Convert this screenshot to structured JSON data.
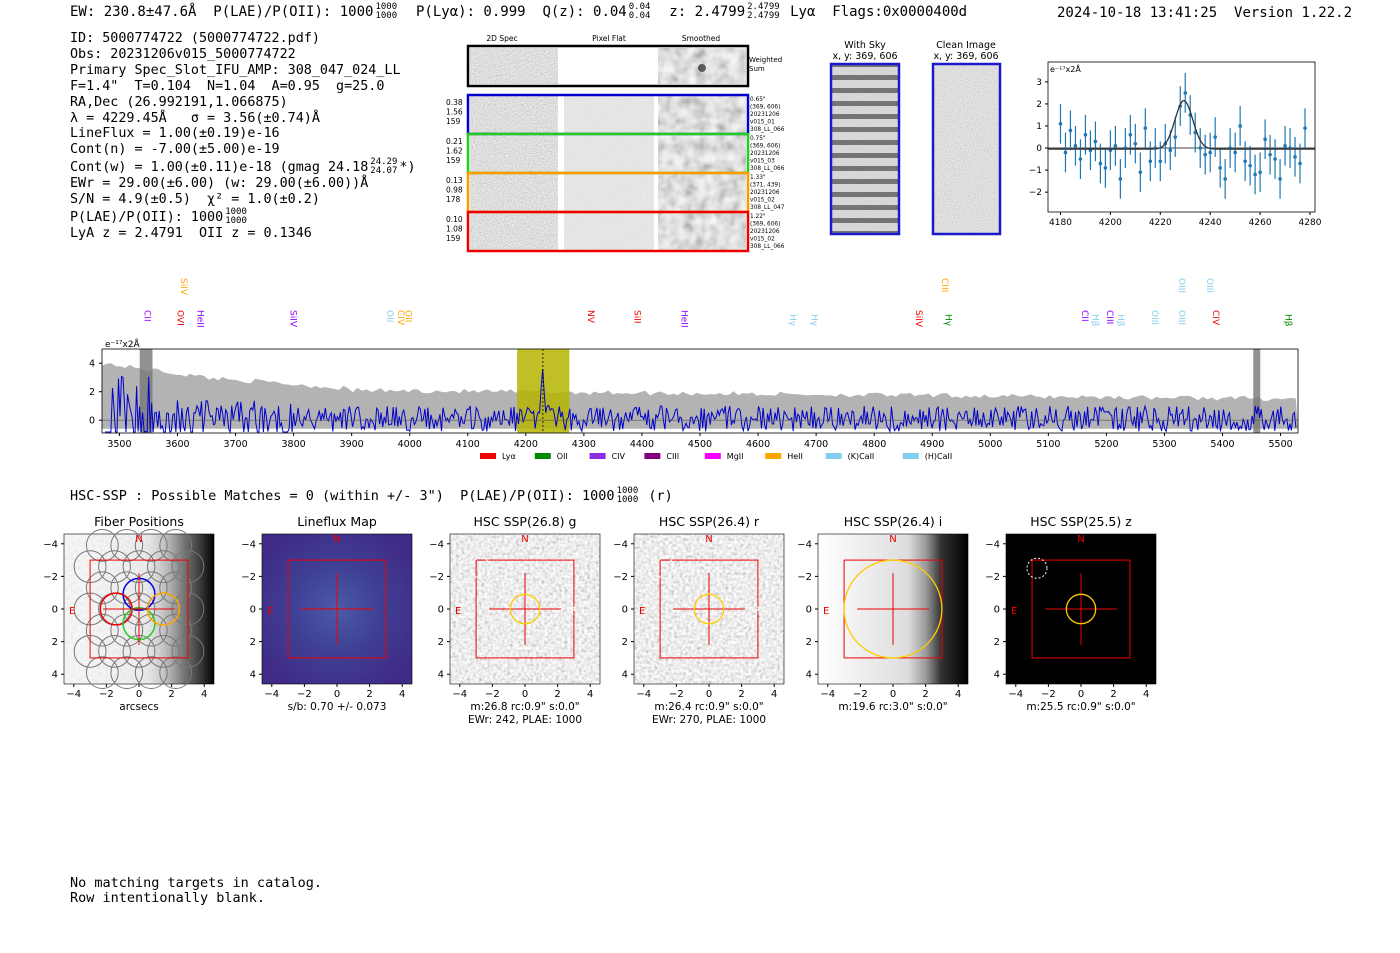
{
  "header": {
    "ew_label": "EW: 230.8±47.6Å",
    "plae_label": "P(LAE)/P(OII): 1000",
    "plae_hi": "1000",
    "plae_lo": "1000",
    "plya_label": "P(Lyα): 0.999",
    "qz_label": "Q(z): 0.04",
    "qz_hi": "0.04",
    "qz_lo": "0.04",
    "z_label": "z: 2.4799",
    "z_hi": "2.4799",
    "z_lo": "2.4799",
    "line_label": "Lyα",
    "flags_label": "Flags:0x0000400d",
    "datetime": "2024-10-18 13:41:25",
    "version": "Version 1.22.2"
  },
  "info": {
    "id": "ID: 5000774722 (5000774722.pdf)",
    "obs": "Obs: 20231206v015_5000774722",
    "primary": "Primary Spec_Slot_IFU_AMP: 308_047_024_LL",
    "fiber": "F=1.4\"  T=0.104  N=1.04  A=0.95  g=25.0",
    "radec": "RA,Dec (26.992191,1.066875)",
    "lambda": "λ = 4229.45Å   σ = 3.56(±0.74)Å",
    "lineflux": "LineFlux = 1.00(±0.19)e-16",
    "contn": "Cont(n) = -7.00(±5.00)e-19",
    "contw": "Cont(w) = 1.00(±0.11)e-18 (gmag 24.18",
    "contw_hi": "24.29",
    "contw_lo": "24.07",
    "contw_end": "*)",
    "ewr": "EWr = 29.00(±6.00) (w: 29.00(±6.00))Å",
    "sn": "S/N = 4.9(±0.5)  χ² = 1.0(±0.2)",
    "plae": "P(LAE)/P(OII): 1000",
    "plae_hi": "1000",
    "plae_lo": "1000",
    "lyaz": "LyA z = 2.4791  OII z = 0.1346"
  },
  "cutouts": {
    "col_labels": [
      "2D Spec",
      "Pixel Flat",
      "Smoothed"
    ],
    "weighted_sum": [
      "Weighted",
      "Sum"
    ],
    "rows": [
      {
        "color": "#0000cc",
        "left": [
          "0.38",
          "1.56",
          "159"
        ],
        "right": [
          "0.65\"",
          "(369, 606)",
          "20231206",
          "v015_01",
          "308_LL_066"
        ]
      },
      {
        "color": "#22cc22",
        "left": [
          "0.21",
          "1.62",
          "159"
        ],
        "right": [
          "0.75\"",
          "(369, 606)",
          "20231206",
          "v015_03",
          "308_LL_066"
        ]
      },
      {
        "color": "#ff9900",
        "left": [
          "0.13",
          "0.98",
          "178"
        ],
        "right": [
          "1.33\"",
          "(371, 439)",
          "20231206",
          "v015_02",
          "308_LL_047"
        ]
      },
      {
        "color": "#ee0000",
        "left": [
          "0.10",
          "1.08",
          "159"
        ],
        "right": [
          "1.22\"",
          "(369, 606)",
          "20231206",
          "v015_02",
          "308_LL_066"
        ]
      }
    ],
    "with_sky_title": "With Sky",
    "with_sky_xy": "x, y: 369, 606",
    "clean_title": "Clean Image",
    "clean_xy": "x, y: 369, 606"
  },
  "chart_data": [
    {
      "type": "scatter",
      "title": "",
      "ylabel": "e⁻¹⁷x2Å",
      "xlim": [
        4175,
        4282
      ],
      "ylim": [
        -2.9,
        3.9
      ],
      "xticks": [
        4180,
        4200,
        4220,
        4240,
        4260,
        4280
      ],
      "yticks": [
        3,
        2,
        1,
        0,
        -1,
        -2
      ],
      "points_x": [
        4180,
        4182,
        4184,
        4186,
        4188,
        4190,
        4192,
        4194,
        4196,
        4198,
        4200,
        4202,
        4204,
        4206,
        4208,
        4210,
        4212,
        4214,
        4216,
        4218,
        4220,
        4222,
        4224,
        4226,
        4228,
        4230,
        4232,
        4234,
        4236,
        4238,
        4240,
        4242,
        4244,
        4246,
        4248,
        4250,
        4252,
        4254,
        4256,
        4258,
        4260,
        4262,
        4264,
        4266,
        4268,
        4270,
        4272,
        4274,
        4276,
        4278
      ],
      "points_y": [
        1.1,
        -0.2,
        0.8,
        0.1,
        -0.5,
        0.6,
        -0.1,
        0.3,
        -0.7,
        -0.9,
        -0.1,
        0.1,
        -1.4,
        0.0,
        0.6,
        0.2,
        -1.1,
        0.9,
        -0.6,
        0.0,
        -0.6,
        0.2,
        -0.1,
        0.5,
        1.9,
        2.5,
        1.5,
        0.7,
        0.0,
        -0.3,
        -0.2,
        0.5,
        -0.9,
        -1.4,
        0.0,
        -0.2,
        1.0,
        -0.6,
        -0.8,
        -1.2,
        -1.1,
        0.4,
        -0.3,
        -0.5,
        -1.4,
        0.1,
        0.0,
        -0.4,
        -0.7,
        0.9
      ],
      "error": 0.9,
      "fit_center": 4229.45,
      "fit_sigma": 3.56,
      "fit_amp": 2.2
    },
    {
      "type": "line",
      "title": "",
      "ylabel": "e⁻¹⁷x2Å",
      "xlim": [
        3470,
        5530
      ],
      "ylim": [
        -0.9,
        5.0
      ],
      "xticks": [
        3500,
        3600,
        3700,
        3800,
        3900,
        4000,
        4100,
        4200,
        4300,
        4400,
        4500,
        4600,
        4700,
        4800,
        4900,
        5000,
        5100,
        5200,
        5300,
        5400,
        5500
      ],
      "yticks": [
        4,
        2,
        0
      ],
      "highlight_range": [
        4185,
        4275
      ],
      "marker_line": 4229.45,
      "masked_ranges": [
        [
          3535,
          3557
        ],
        [
          5453,
          5465
        ]
      ],
      "line_markers": [
        {
          "name": "CII",
          "x": 3548,
          "color": "#aa00ff",
          "row": 1
        },
        {
          "name": "SiIV",
          "x": 3611,
          "color": "#ffa500",
          "row": 0
        },
        {
          "name": "OVI",
          "x": 3605,
          "color": "#ee0000",
          "row": 1
        },
        {
          "name": "HeII",
          "x": 3640,
          "color": "#8b00ff",
          "row": 1
        },
        {
          "name": "SiIV",
          "x": 3800,
          "color": "#8b00ff",
          "row": 1
        },
        {
          "name": "OII",
          "x": 3966,
          "color": "#87ceeb",
          "row": 1
        },
        {
          "name": "CIV",
          "x": 3985,
          "color": "#ffa500",
          "row": 1
        },
        {
          "name": "OII",
          "x": 3998,
          "color": "#ffa500",
          "row": 1
        },
        {
          "name": "NV",
          "x": 4312,
          "color": "#ee0000",
          "row": 1
        },
        {
          "name": "SiII",
          "x": 4392,
          "color": "#ee0000",
          "row": 1
        },
        {
          "name": "HeII",
          "x": 4473,
          "color": "#8b00ff",
          "row": 1
        },
        {
          "name": "Hγ",
          "x": 4660,
          "color": "#87ceeb",
          "row": 2
        },
        {
          "name": "Hγ",
          "x": 4697,
          "color": "#87ceeb",
          "row": 2
        },
        {
          "name": "SiIV",
          "x": 4877,
          "color": "#ee0000",
          "row": 1
        },
        {
          "name": "CIII",
          "x": 4922,
          "color": "#ffa500",
          "row": 0
        },
        {
          "name": "Hγ",
          "x": 4928,
          "color": "#008800",
          "row": 2
        },
        {
          "name": "CII",
          "x": 5163,
          "color": "#8b00ff",
          "row": 1
        },
        {
          "name": "Hβ",
          "x": 5181,
          "color": "#87ceeb",
          "row": 2
        },
        {
          "name": "CIII",
          "x": 5206,
          "color": "#8b00ff",
          "row": 1
        },
        {
          "name": "Hβ",
          "x": 5225,
          "color": "#87ceeb",
          "row": 2
        },
        {
          "name": "OIII",
          "x": 5284,
          "color": "#87ceeb",
          "row": 1
        },
        {
          "name": "OIII",
          "x": 5330,
          "color": "#87ceeb",
          "row": 0
        },
        {
          "name": "OIII",
          "x": 5330,
          "color": "#87ceeb",
          "row": 1
        },
        {
          "name": "OIII",
          "x": 5378,
          "color": "#87ceeb",
          "row": 0
        },
        {
          "name": "CIV",
          "x": 5389,
          "color": "#ee0000",
          "row": 1
        },
        {
          "name": "Hβ",
          "x": 5514,
          "color": "#008800",
          "row": 2
        }
      ],
      "legend": [
        {
          "name": "Lyα",
          "color": "#ee0000"
        },
        {
          "name": "OII",
          "color": "#008800"
        },
        {
          "name": "CIV",
          "color": "#8a2be2"
        },
        {
          "name": "CIII",
          "color": "#800080"
        },
        {
          "name": "MgII",
          "color": "#ff00ff"
        },
        {
          "name": "HeII",
          "color": "#ffa500"
        },
        {
          "name": "(K)CaII",
          "color": "#87ceeb"
        },
        {
          "name": "(H)CaII",
          "color": "#87ceeb"
        }
      ]
    }
  ],
  "hsc_line": {
    "text": "HSC-SSP : Possible Matches = 0 (within +/- 3\")  P(LAE)/P(OII): 1000",
    "hi": "1000",
    "lo": "1000",
    "end": "(r)"
  },
  "panels": [
    {
      "title": "Fiber Positions",
      "caption1": "arcsecs",
      "caption2": ""
    },
    {
      "title": "Lineflux Map",
      "caption1": "s/b: 0.70 +/- 0.073",
      "caption2": ""
    },
    {
      "title": "HSC SSP(26.8) g",
      "caption1": "m:26.8 rc:0.9\"  s:0.0\"",
      "caption2": "EWr: 242, PLAE: 1000"
    },
    {
      "title": "HSC SSP(26.4) r",
      "caption1": "m:26.4 rc:0.9\"  s:0.0\"",
      "caption2": "EWr: 270, PLAE: 1000"
    },
    {
      "title": "HSC SSP(26.4) i",
      "caption1": "m:19.6 rc:3.0\"  s:0.0\"",
      "caption2": ""
    },
    {
      "title": "HSC SSP(25.5) z",
      "caption1": "m:25.5 rc:0.9\"  s:0.0\"",
      "caption2": ""
    }
  ],
  "panel_axes": {
    "ticks": [
      "−4",
      "−2",
      "0",
      "2",
      "4"
    ],
    "north": "N",
    "east": "E"
  },
  "footer": {
    "line1": "No matching targets in catalog.",
    "line2": "Row intentionally blank."
  }
}
